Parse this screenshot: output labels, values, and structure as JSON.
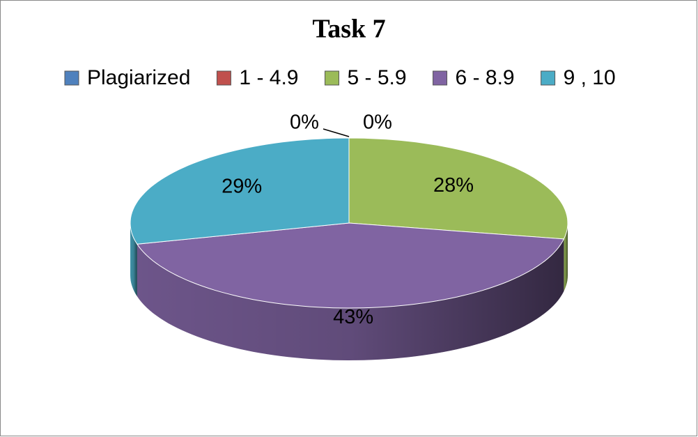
{
  "chart_data": {
    "type": "pie",
    "title": "Task 7",
    "categories": [
      "Plagiarized",
      "1 - 4.9",
      "5 - 5.9",
      "6 - 8.9",
      "9 , 10"
    ],
    "values": [
      0,
      0,
      28,
      43,
      29
    ],
    "value_labels": [
      "0%",
      "0%",
      "28%",
      "43%",
      "29%"
    ],
    "colors": [
      "#4f81bd",
      "#c0504d",
      "#9bbb59",
      "#8064a2",
      "#4bacc6"
    ],
    "legend": "top"
  }
}
